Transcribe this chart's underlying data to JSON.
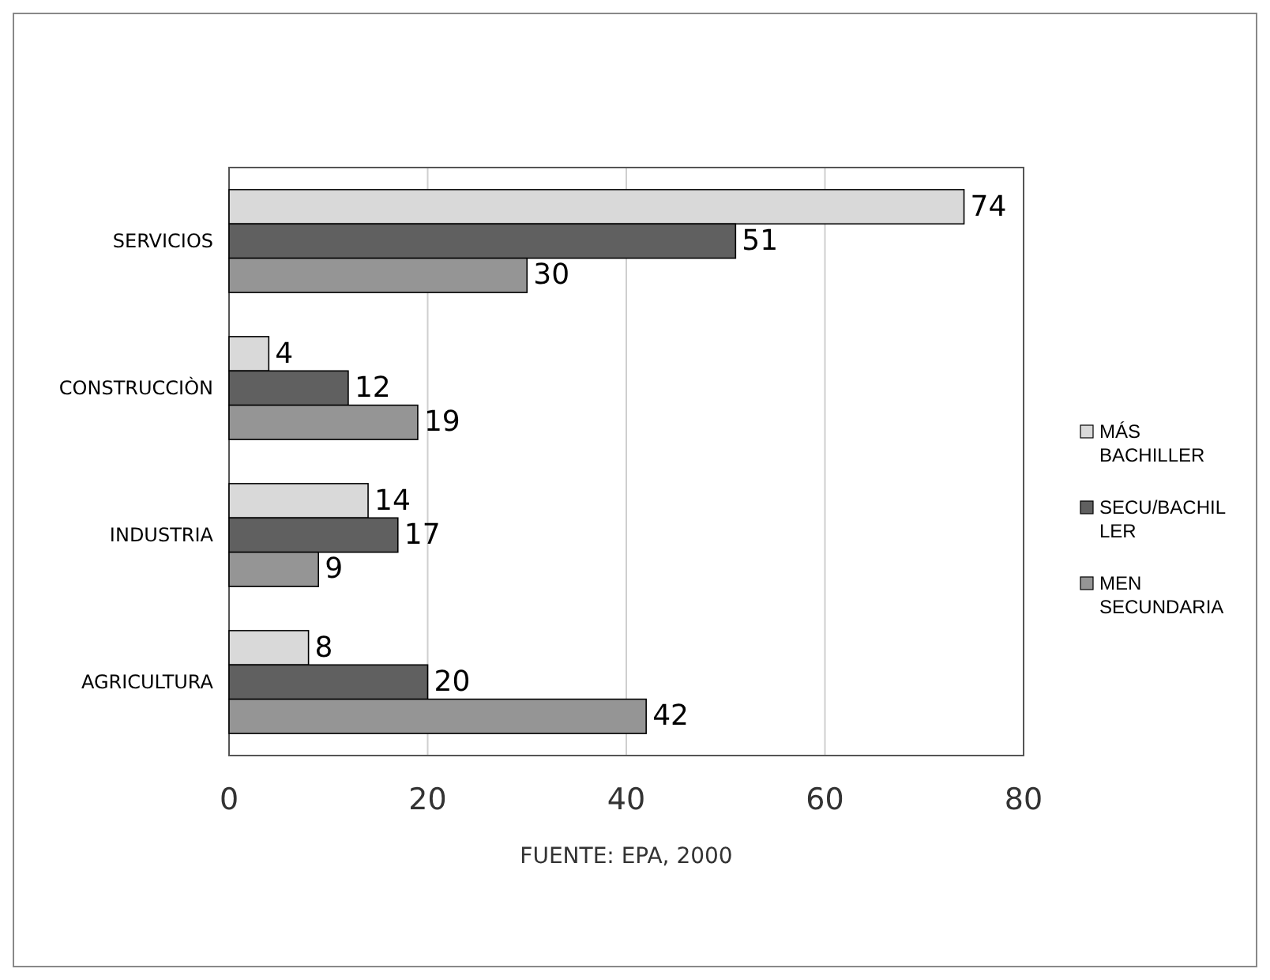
{
  "chart_data": {
    "type": "bar",
    "orientation": "horizontal",
    "categories": [
      "SERVICIOS",
      "CONSTRUCCIÒN",
      "INDUSTRIA",
      "AGRICULTURA"
    ],
    "series": [
      {
        "name": "MÁS BACHILLER",
        "color": "#d9d9d9",
        "values": [
          74,
          4,
          14,
          8
        ]
      },
      {
        "name": "SECU/BACHILLER",
        "color": "#606060",
        "values": [
          51,
          12,
          17,
          20
        ]
      },
      {
        "name": "MEN SECUNDARIA",
        "color": "#959595",
        "values": [
          30,
          19,
          9,
          42
        ]
      }
    ],
    "xlim": [
      0,
      80
    ],
    "xticks": [
      0,
      20,
      40,
      60,
      80
    ],
    "grid": "x",
    "legend": "right",
    "data_labels": true,
    "annotations": [
      "FUENTE: EPA, 2000"
    ]
  }
}
